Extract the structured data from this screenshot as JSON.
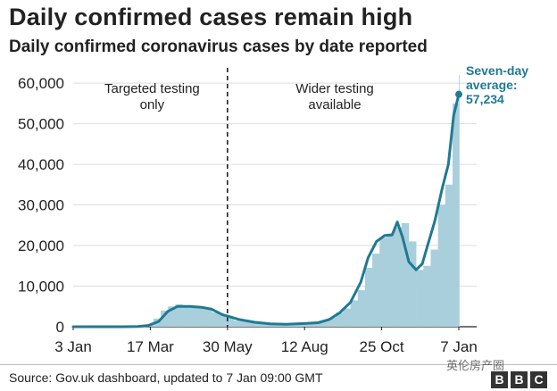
{
  "chart_data": {
    "type": "bar",
    "title": "Daily confirmed cases remain high",
    "subtitle": "Daily confirmed coronavirus cases by date reported",
    "xlabel": "",
    "ylabel": "",
    "ylim": [
      0,
      62000
    ],
    "y_ticks": [
      0,
      10000,
      20000,
      30000,
      40000,
      50000,
      60000
    ],
    "y_tick_labels": [
      "0",
      "10,000",
      "20,000",
      "30,000",
      "40,000",
      "50,000",
      "60,000"
    ],
    "x_tick_labels": [
      "3 Jan",
      "17 Mar",
      "30 May",
      "12 Aug",
      "25 Oct",
      "7 Jan"
    ],
    "grid": true,
    "divider_label": "30 May",
    "regions": [
      {
        "label": "Targeted testing only"
      },
      {
        "label": "Wider testing available"
      }
    ],
    "annotation": {
      "label": "Seven-day average:",
      "value": "57,234"
    },
    "series": [
      {
        "kind": "bars",
        "dates": [
          "2020-01-03",
          "2020-01-17",
          "2020-01-31",
          "2020-02-14",
          "2020-02-28",
          "2020-03-06",
          "2020-03-13",
          "2020-03-20",
          "2020-03-27",
          "2020-04-03",
          "2020-04-10",
          "2020-04-17",
          "2020-04-24",
          "2020-05-01",
          "2020-05-08",
          "2020-05-15",
          "2020-05-22",
          "2020-05-29",
          "2020-06-05",
          "2020-06-12",
          "2020-06-19",
          "2020-06-26",
          "2020-07-03",
          "2020-07-10",
          "2020-07-17",
          "2020-07-24",
          "2020-07-31",
          "2020-08-07",
          "2020-08-14",
          "2020-08-21",
          "2020-08-28",
          "2020-09-04",
          "2020-09-11",
          "2020-09-18",
          "2020-09-25",
          "2020-10-02",
          "2020-10-09",
          "2020-10-16",
          "2020-10-23",
          "2020-10-30",
          "2020-11-06",
          "2020-11-13",
          "2020-11-20",
          "2020-11-27",
          "2020-12-04",
          "2020-12-11",
          "2020-12-18",
          "2020-12-25",
          "2021-01-01",
          "2021-01-07"
        ],
        "values": [
          0,
          0,
          0,
          0,
          50,
          150,
          600,
          2000,
          4000,
          5000,
          5500,
          5000,
          4800,
          5000,
          4500,
          3500,
          3000,
          2500,
          1500,
          1300,
          1100,
          900,
          700,
          600,
          600,
          700,
          800,
          900,
          1000,
          1100,
          1400,
          2200,
          3500,
          4500,
          6500,
          9000,
          14500,
          18000,
          22000,
          23000,
          24500,
          25500,
          21000,
          14000,
          15000,
          19000,
          30000,
          35000,
          55000,
          62000
        ]
      },
      {
        "kind": "line",
        "name": "Seven-day average",
        "dates": [
          "2020-01-03",
          "2020-02-20",
          "2020-03-05",
          "2020-03-15",
          "2020-03-25",
          "2020-04-03",
          "2020-04-12",
          "2020-04-24",
          "2020-05-05",
          "2020-05-15",
          "2020-05-25",
          "2020-06-10",
          "2020-06-25",
          "2020-07-10",
          "2020-07-25",
          "2020-08-12",
          "2020-08-25",
          "2020-09-05",
          "2020-09-15",
          "2020-09-25",
          "2020-10-05",
          "2020-10-12",
          "2020-10-20",
          "2020-10-28",
          "2020-11-04",
          "2020-11-09",
          "2020-11-14",
          "2020-11-20",
          "2020-11-27",
          "2020-12-03",
          "2020-12-08",
          "2020-12-15",
          "2020-12-22",
          "2020-12-28",
          "2021-01-02",
          "2021-01-07"
        ],
        "values": [
          0,
          0,
          50,
          300,
          1300,
          3800,
          5000,
          5000,
          4800,
          4300,
          3000,
          1800,
          1100,
          700,
          600,
          800,
          1000,
          1800,
          3500,
          6000,
          11000,
          17000,
          21000,
          22500,
          22600,
          25800,
          22000,
          16000,
          14000,
          15500,
          20000,
          26000,
          34000,
          40000,
          52000,
          57234
        ]
      }
    ]
  }
}
